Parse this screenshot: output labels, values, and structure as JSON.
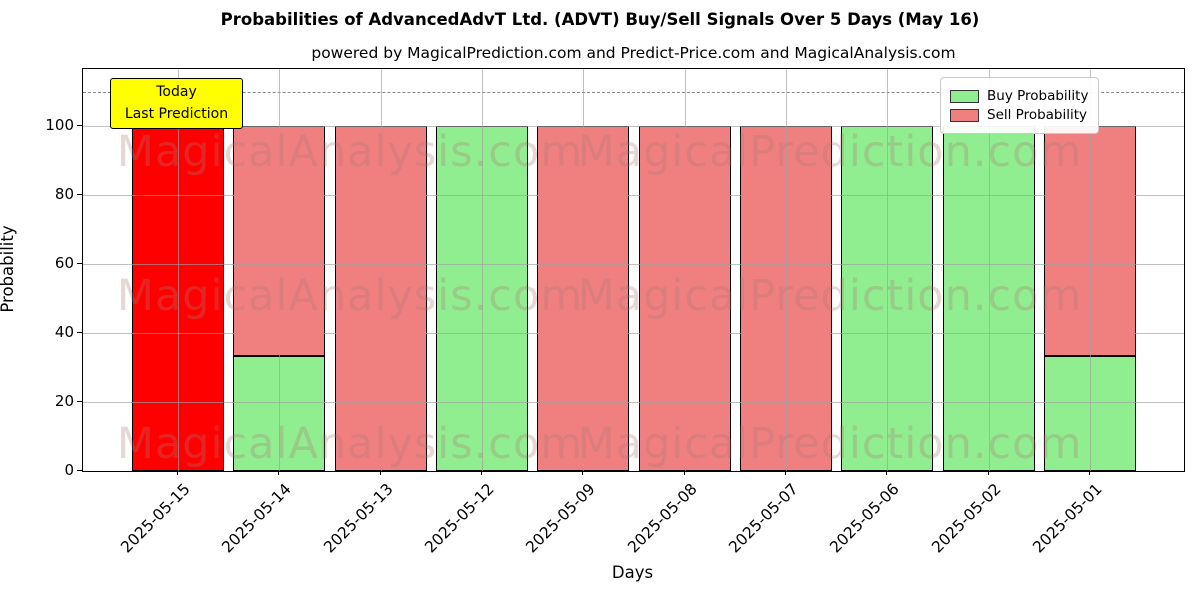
{
  "title": "Probabilities of AdvancedAdvT Ltd. (ADVT) Buy/Sell Signals Over 5 Days (May 16)",
  "subtitle": "powered by MagicalPrediction.com and Predict-Price.com and MagicalAnalysis.com",
  "axes": {
    "x_label": "Days",
    "y_label": "Probability",
    "y_ticks": [
      0,
      20,
      40,
      60,
      80,
      100
    ]
  },
  "legend": {
    "items": [
      {
        "label": "Buy Probability",
        "color": "#90ee90"
      },
      {
        "label": "Sell Probability",
        "color": "#f08080"
      }
    ]
  },
  "annotation": {
    "line1": "Today",
    "line2": "Last Prediction",
    "bg_color": "#ffff00"
  },
  "watermarks": {
    "left_text": "MagicalAnalysis.com",
    "right_text": "MagicalPrediction.com"
  },
  "reference_line": {
    "y": 110,
    "style": "dashed",
    "color": "#888888"
  },
  "colors": {
    "buy": "#90ee90",
    "sell": "#f08080",
    "today": "#ff0000",
    "grid": "#a0a0a0"
  },
  "chart_data": {
    "type": "bar",
    "stacked": true,
    "title": "Probabilities of AdvancedAdvT Ltd. (ADVT) Buy/Sell Signals Over 5 Days (May 16)",
    "xlabel": "Days",
    "ylabel": "Probability",
    "ylim": [
      0,
      116.5
    ],
    "grid": true,
    "legend_position": "upper right",
    "categories": [
      "2025-05-15",
      "2025-05-14",
      "2025-05-13",
      "2025-05-12",
      "2025-05-09",
      "2025-05-08",
      "2025-05-07",
      "2025-05-06",
      "2025-05-02",
      "2025-05-01"
    ],
    "series": [
      {
        "name": "Buy Probability",
        "color": "#90ee90",
        "values": [
          0,
          33.3,
          0,
          100,
          0,
          0,
          0,
          100,
          100,
          33.3
        ]
      },
      {
        "name": "Sell Probability",
        "color": "#f08080",
        "values": [
          0,
          66.7,
          100,
          0,
          100,
          100,
          100,
          0,
          0,
          66.7
        ]
      },
      {
        "name": "Today / Last Prediction",
        "color": "#ff0000",
        "values": [
          100,
          0,
          0,
          0,
          0,
          0,
          0,
          0,
          0,
          0
        ]
      }
    ]
  }
}
